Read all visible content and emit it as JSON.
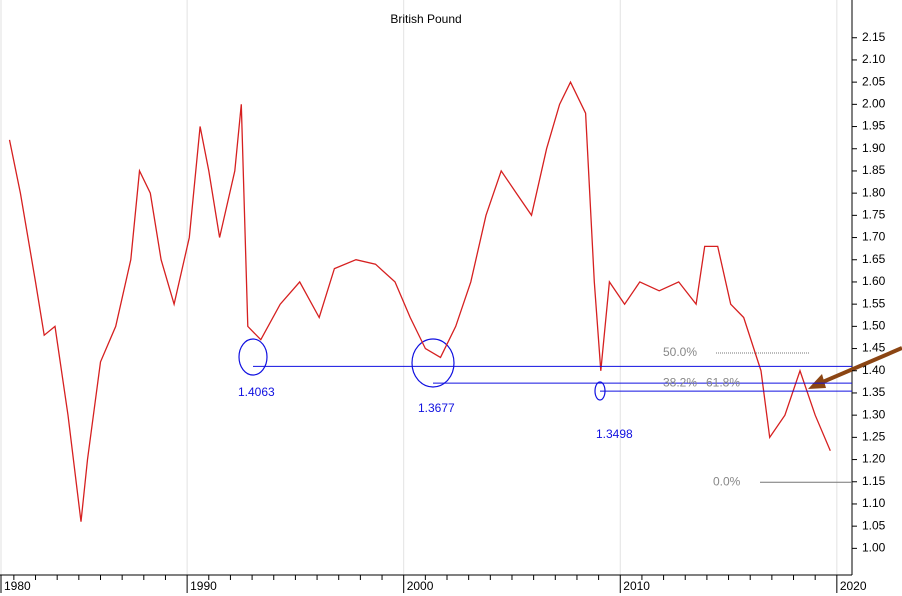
{
  "chart_data": {
    "type": "line",
    "title": "British Pound",
    "x": [
      1981.8,
      1982.3,
      1983.0,
      1983.4,
      1983.9,
      1984.5,
      1985.1,
      1985.4,
      1986.0,
      1986.7,
      1987.4,
      1987.8,
      1988.3,
      1988.8,
      1989.4,
      1990.1,
      1990.6,
      1991.0,
      1991.5,
      1992.2,
      1992.5,
      1992.8,
      1993.4,
      1994.3,
      1995.2,
      1996.1,
      1996.8,
      1997.8,
      1998.7,
      1999.6,
      2000.3,
      2001.0,
      2001.7,
      2002.4,
      2003.1,
      2003.8,
      2004.5,
      2005.2,
      2005.9,
      2006.6,
      2007.2,
      2007.7,
      2008.4,
      2008.8,
      2009.1,
      2009.5,
      2010.2,
      2010.9,
      2011.8,
      2012.7,
      2013.5,
      2013.9,
      2014.5,
      2015.1,
      2015.7,
      2016.5,
      2016.9,
      2017.6,
      2018.3,
      2019.0,
      2019.7
    ],
    "series": [
      {
        "name": "British Pound",
        "color": "#d62020",
        "values": [
          1.92,
          1.8,
          1.6,
          1.48,
          1.5,
          1.3,
          1.06,
          1.2,
          1.42,
          1.5,
          1.65,
          1.85,
          1.8,
          1.65,
          1.55,
          1.7,
          1.95,
          1.85,
          1.7,
          1.85,
          2.0,
          1.5,
          1.47,
          1.55,
          1.6,
          1.52,
          1.63,
          1.65,
          1.64,
          1.6,
          1.52,
          1.45,
          1.43,
          1.5,
          1.6,
          1.75,
          1.85,
          1.8,
          1.75,
          1.9,
          2.0,
          2.05,
          1.98,
          1.6,
          1.4,
          1.6,
          1.55,
          1.6,
          1.58,
          1.6,
          1.55,
          1.68,
          1.68,
          1.55,
          1.52,
          1.4,
          1.25,
          1.3,
          1.4,
          1.3,
          1.22
        ]
      }
    ],
    "xlim": [
      1981.36,
      2020.7
    ],
    "xticks": [
      1980,
      1990,
      2000,
      2010,
      2020
    ],
    "ylim": [
      0.94,
      2.235
    ],
    "yticks": [
      {
        "value": 1.0,
        "label": "1.00"
      },
      {
        "value": 1.05,
        "label": "1.05"
      },
      {
        "value": 1.1,
        "label": "1.10"
      },
      {
        "value": 1.15,
        "label": "1.15"
      },
      {
        "value": 1.2,
        "label": "1.20"
      },
      {
        "value": 1.25,
        "label": "1.25"
      },
      {
        "value": 1.3,
        "label": "1.30"
      },
      {
        "value": 1.35,
        "label": "1.35"
      },
      {
        "value": 1.4,
        "label": "1.40"
      },
      {
        "value": 1.45,
        "label": "1.45"
      },
      {
        "value": 1.5,
        "label": "1.50"
      },
      {
        "value": 1.55,
        "label": "1.55"
      },
      {
        "value": 1.6,
        "label": "1.60"
      },
      {
        "value": 1.65,
        "label": "1.65"
      },
      {
        "value": 1.7,
        "label": "1.70"
      },
      {
        "value": 1.75,
        "label": "1.75"
      },
      {
        "value": 1.8,
        "label": "1.80"
      },
      {
        "value": 1.85,
        "label": "1.85"
      },
      {
        "value": 1.9,
        "label": "1.90"
      },
      {
        "value": 1.95,
        "label": "1.95"
      },
      {
        "value": 2.0,
        "label": "2.00"
      },
      {
        "value": 2.05,
        "label": "2.05"
      },
      {
        "value": 2.1,
        "label": "2.10"
      },
      {
        "value": 2.15,
        "label": "2.15"
      }
    ],
    "grid": true,
    "levels": [
      {
        "label": "1.4063",
        "value": 1.41,
        "color": "#1010e0"
      },
      {
        "label": "1.3677",
        "value": 1.372,
        "color": "#1010e0"
      },
      {
        "label": "1.3498",
        "value": 1.354,
        "color": "#1010e0"
      }
    ],
    "fib_levels": [
      {
        "label": "50.0%",
        "value": 1.44
      },
      {
        "label": "38.2%",
        "value": 1.372
      },
      {
        "label": "61.8%",
        "value": 1.372
      },
      {
        "label": "0.0%",
        "value": 1.149
      }
    ]
  }
}
